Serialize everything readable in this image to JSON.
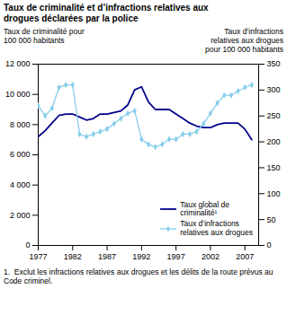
{
  "chart_data": {
    "type": "line",
    "title": "Taux de criminalité et d’infractions relatives aux\ndrogues déclarées par la police",
    "y_label": "Taux de criminalité pour\n100 000 habitants",
    "y2_label": "Taux d’infractions\nrelatives aux drogues\npour 100 000 habitants",
    "footnote": "1.  Exclut les infractions relatives aux drogues et les délits de la route prévus au Code criminel.",
    "x": [
      1977,
      1978,
      1979,
      1980,
      1981,
      1982,
      1983,
      1984,
      1985,
      1986,
      1987,
      1988,
      1989,
      1990,
      1991,
      1992,
      1993,
      1994,
      1995,
      1996,
      1997,
      1998,
      1999,
      2000,
      2001,
      2002,
      2003,
      2004,
      2005,
      2006,
      2007,
      2008
    ],
    "series": [
      {
        "name": "Taux global de\ncriminalité¹",
        "color": "#00008B",
        "values": [
          7200,
          7600,
          8100,
          8600,
          8700,
          8700,
          8500,
          8300,
          8400,
          8700,
          8700,
          8800,
          8900,
          9300,
          10300,
          10500,
          9500,
          9000,
          9000,
          9000,
          8700,
          8400,
          8100,
          7900,
          7800,
          7800,
          8000,
          8100,
          8100,
          8100,
          7700,
          7000
        ]
      },
      {
        "name": "Taux d’infractions\nrelatives aux drogues",
        "color": "#87CEEB",
        "axis": "y2",
        "marker": "diamond",
        "values": [
          270,
          250,
          265,
          305,
          310,
          310,
          215,
          210,
          215,
          220,
          225,
          235,
          245,
          255,
          260,
          205,
          195,
          190,
          195,
          205,
          205,
          215,
          215,
          220,
          235,
          255,
          275,
          290,
          290,
          298,
          305,
          310
        ]
      }
    ],
    "xlim": [
      1977,
      2009
    ],
    "xticks": [
      1977,
      1982,
      1987,
      1992,
      1997,
      2002,
      2007
    ],
    "ylim": [
      0,
      12000
    ],
    "yticks": [
      0,
      {
        "value": 2000,
        "label": "2 000"
      },
      {
        "value": 4000,
        "label": "4 000"
      },
      {
        "value": 6000,
        "label": "6 000"
      },
      {
        "value": 8000,
        "label": "8 000"
      },
      {
        "value": 10000,
        "label": "10 000"
      },
      {
        "value": 12000,
        "label": "12 000"
      }
    ],
    "y2lim": [
      0,
      350
    ],
    "y2ticks": [
      0,
      50,
      100,
      150,
      200,
      250,
      300,
      350
    ],
    "legend": "lower right"
  }
}
